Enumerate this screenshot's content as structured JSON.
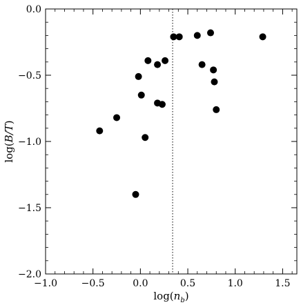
{
  "chart_data": {
    "type": "scatter",
    "title": "",
    "xlabel": "log(n_b)",
    "ylabel": "log(B/T)",
    "xlim": [
      -1.0,
      1.65
    ],
    "ylim": [
      -2.0,
      0.0
    ],
    "xticks": [
      -1.0,
      -0.5,
      0.0,
      0.5,
      1.0,
      1.5
    ],
    "xtick_labels": [
      "−1.0",
      "−0.5",
      "0.0",
      "0.5",
      "1.0",
      "1.5"
    ],
    "yticks": [
      0.0,
      -0.5,
      -1.0,
      -1.5,
      -2.0
    ],
    "ytick_labels": [
      "0.0",
      "−0.5",
      "−1.0",
      "−1.5",
      "−2.0"
    ],
    "grid": false,
    "legend": "none",
    "reference_line": {
      "axis": "x",
      "value": 0.34,
      "style": "dotted"
    },
    "marker_color": "#000000",
    "points": [
      {
        "x": -0.43,
        "y": -0.92
      },
      {
        "x": -0.25,
        "y": -0.82
      },
      {
        "x": -0.05,
        "y": -1.4
      },
      {
        "x": -0.02,
        "y": -0.51
      },
      {
        "x": 0.01,
        "y": -0.65
      },
      {
        "x": 0.05,
        "y": -0.97
      },
      {
        "x": 0.08,
        "y": -0.39
      },
      {
        "x": 0.18,
        "y": -0.42
      },
      {
        "x": 0.18,
        "y": -0.71
      },
      {
        "x": 0.23,
        "y": -0.72
      },
      {
        "x": 0.26,
        "y": -0.39
      },
      {
        "x": 0.35,
        "y": -0.21
      },
      {
        "x": 0.41,
        "y": -0.21
      },
      {
        "x": 0.6,
        "y": -0.2
      },
      {
        "x": 0.65,
        "y": -0.42
      },
      {
        "x": 0.74,
        "y": -0.18
      },
      {
        "x": 0.77,
        "y": -0.46
      },
      {
        "x": 0.78,
        "y": -0.55
      },
      {
        "x": 0.8,
        "y": -0.76
      },
      {
        "x": 1.29,
        "y": -0.21
      }
    ]
  }
}
